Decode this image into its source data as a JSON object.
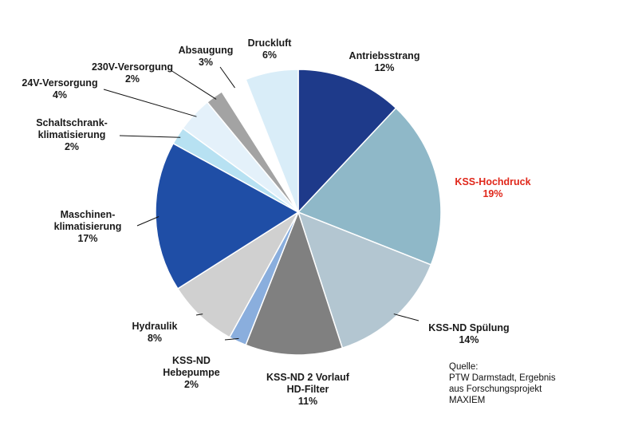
{
  "chart_data": {
    "type": "pie",
    "title": "",
    "slices": [
      {
        "label": [
          "Antriebsstrang"
        ],
        "value": 12,
        "value_label": "12%",
        "color": "#1e3a8a",
        "highlight": false
      },
      {
        "label": [
          "KSS-Hochdruck"
        ],
        "value": 19,
        "value_label": "19%",
        "color": "#8fb8c8",
        "highlight": true
      },
      {
        "label": [
          "KSS-ND Spülung"
        ],
        "value": 14,
        "value_label": "14%",
        "color": "#b3c6d1",
        "highlight": false
      },
      {
        "label": [
          "KSS-ND 2 Vorlauf",
          "HD-Filter"
        ],
        "value": 11,
        "value_label": "11%",
        "color": "#808080",
        "highlight": false
      },
      {
        "label": [
          "KSS-ND",
          "Hebepumpe"
        ],
        "value": 2,
        "value_label": "2%",
        "color": "#8aaedd",
        "highlight": false
      },
      {
        "label": [
          "Hydraulik"
        ],
        "value": 8,
        "value_label": "8%",
        "color": "#d0d0d0",
        "highlight": false
      },
      {
        "label": [
          "Maschinen-",
          "klimatisierung"
        ],
        "value": 17,
        "value_label": "17%",
        "color": "#1f4ea6",
        "highlight": false
      },
      {
        "label": [
          "Schaltschrank-",
          "klimatisierung"
        ],
        "value": 2,
        "value_label": "2%",
        "color": "#b7e1f2",
        "highlight": false
      },
      {
        "label": [
          "24V-Versorgung"
        ],
        "value": 4,
        "value_label": "4%",
        "color": "#e4f1fa",
        "highlight": false
      },
      {
        "label": [
          "230V-Versorgung"
        ],
        "value": 2,
        "value_label": "2%",
        "color": "#a3a3a3",
        "highlight": false
      },
      {
        "label": [
          "Absaugung"
        ],
        "value": 3,
        "value_label": "3%",
        "color": "#ffffff",
        "highlight": false
      },
      {
        "label": [
          "Druckluft"
        ],
        "value": 6,
        "value_label": "6%",
        "color": "#d9edf8",
        "highlight": false
      }
    ]
  },
  "source": {
    "lines": [
      "Quelle:",
      "PTW Darmstadt, Ergebnis",
      "aus Forschungsprojekt",
      "MAXIEM"
    ]
  }
}
